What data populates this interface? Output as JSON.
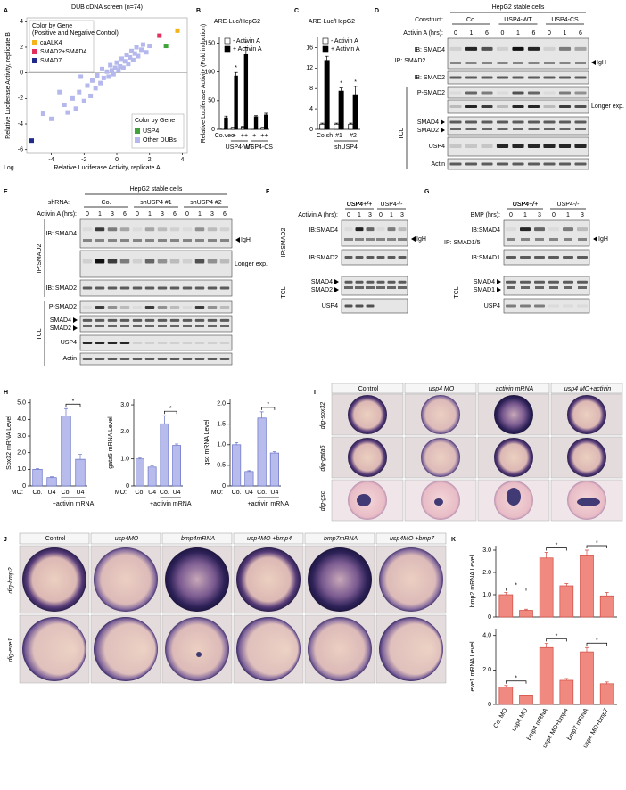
{
  "panel_letters": [
    "A",
    "B",
    "C",
    "D",
    "E",
    "F",
    "G",
    "H",
    "I",
    "J",
    "K"
  ],
  "chart_data": [
    {
      "type": "scatter",
      "title": "DUB cDNA screen (n=74)",
      "xlabel": "Relative Luciferase Activity, replicate A",
      "ylabel": "Relative Luciferase Activity, replicate B",
      "scale_note": "Log",
      "legend_titles": [
        "Color by Gene",
        "Color by Gene"
      ],
      "legend_note": "(Positive and Negative Control)",
      "zero_line": true,
      "xlim": [
        -5.5,
        4.3
      ],
      "ylim": [
        -6.3,
        4.3
      ],
      "xticks": [
        -4,
        -2,
        0,
        2,
        4
      ],
      "yticks": [
        -6,
        -4,
        -2,
        0,
        2,
        4
      ],
      "series": [
        {
          "name": "caALK4",
          "color": "#f5b31a",
          "x": [
            3.7
          ],
          "values": [
            3.3
          ]
        },
        {
          "name": "SMAD2+SMAD4",
          "color": "#e3305a",
          "x": [
            2.6
          ],
          "values": [
            2.9
          ]
        },
        {
          "name": "SMAD7",
          "color": "#1f2a8a",
          "x": [
            -5.2
          ],
          "values": [
            -5.3
          ]
        },
        {
          "name": "USP4",
          "color": "#3fa33a",
          "x": [
            3.0
          ],
          "values": [
            2.1
          ]
        },
        {
          "name": "Other DUBs",
          "color": "#b4b8ec",
          "x": [
            -4.5,
            -4,
            -3.5,
            -3.2,
            -3,
            -2.7,
            -2.5,
            -2.3,
            -2.2,
            -2,
            -1.8,
            -1.6,
            -1.5,
            -1.3,
            -1.2,
            -1,
            -0.9,
            -0.8,
            -0.6,
            -0.5,
            -0.4,
            -0.3,
            -0.2,
            -0.1,
            0,
            0.1,
            0.2,
            0.3,
            0.4,
            0.5,
            0.6,
            0.7,
            0.8,
            0.9,
            1,
            1.1,
            1.2,
            1.3,
            1.5,
            1.6,
            1.8,
            2
          ],
          "values": [
            -3.2,
            -3.6,
            -1.5,
            -2.5,
            -3.1,
            -2,
            -2.8,
            -1.5,
            -0.3,
            -2.2,
            -1,
            -1.8,
            -0.6,
            -1.2,
            -0.2,
            -0.8,
            0.3,
            -0.4,
            0.1,
            -0.3,
            0.6,
            0.2,
            -0.1,
            0.4,
            0.8,
            0.2,
            0.5,
            1.1,
            0.4,
            0.9,
            1.4,
            0.7,
            1.2,
            1.7,
            1,
            1.5,
            2,
            1.3,
            1.8,
            2.2,
            1.6,
            2.1
          ]
        }
      ]
    },
    {
      "type": "bar",
      "title": "ARE-Luc/HepG2",
      "ylabel": "Relative Luciferase Activity (Fold induction)",
      "edge_color": "#000000",
      "legend": true,
      "categories": [
        "Co.vec",
        "+",
        "++",
        "+",
        "++"
      ],
      "groups": [
        {
          "label": "USP4-WT",
          "from": 1,
          "to": 2
        },
        {
          "label": "USP4-CS",
          "from": 3,
          "to": 4
        }
      ],
      "series": [
        {
          "name": "- Activin A",
          "color": "#ffffff",
          "values": [
            2,
            3,
            4,
            2,
            3
          ],
          "errors": [
            0.5,
            0.5,
            1,
            0.5,
            0.5
          ]
        },
        {
          "name": "+ Activin A",
          "color": "#000000",
          "values": [
            20,
            93,
            130,
            22,
            25
          ],
          "errors": [
            3,
            6,
            12,
            2,
            3
          ]
        }
      ],
      "brackets": [
        {
          "label": "*",
          "from": 1,
          "to": 1
        },
        {
          "label": "*",
          "from": 2,
          "to": 2
        }
      ],
      "ylim": [
        0,
        160
      ],
      "yticks": [
        0,
        50,
        100,
        150
      ]
    },
    {
      "type": "bar",
      "title": "ARE-Luc/HepG2",
      "edge_color": "#000000",
      "legend": true,
      "categories": [
        "Co.sh",
        "#1",
        "#2"
      ],
      "groups": [
        {
          "label": "shUSP4",
          "from": 1,
          "to": 2
        }
      ],
      "series": [
        {
          "name": "- Activin A",
          "color": "#ffffff",
          "values": [
            1,
            1,
            1
          ],
          "errors": [
            0.2,
            0.2,
            0.2
          ]
        },
        {
          "name": "+ Activin A",
          "color": "#000000",
          "values": [
            13.5,
            7.5,
            6.8
          ],
          "errors": [
            0.8,
            0.6,
            1.6
          ]
        }
      ],
      "brackets": [
        {
          "label": "*",
          "from": 1,
          "to": 1
        },
        {
          "label": "*",
          "from": 2,
          "to": 2
        }
      ],
      "ylim": [
        0,
        18
      ],
      "yticks": [
        0,
        4,
        8,
        12,
        16
      ]
    },
    {
      "type": "bar",
      "ylabel": "Sox32 mRNA Level",
      "category_label": "MO:",
      "color": "#b8bcec",
      "edge_color": "#6670c8",
      "categories": [
        "Co.",
        "U4",
        "Co.",
        "U4"
      ],
      "values": [
        1.0,
        0.5,
        4.2,
        1.6
      ],
      "errors": [
        0.05,
        0.05,
        0.45,
        0.3
      ],
      "groups": [
        {
          "label": "+activin mRNA",
          "from": 2,
          "to": 3
        }
      ],
      "brackets": [
        {
          "label": "*",
          "from": 2,
          "to": 3
        }
      ],
      "ylim": [
        0,
        5.2
      ],
      "yticks": [
        0,
        {
          "value": 1,
          "label": "1.0"
        },
        {
          "value": 2,
          "label": "2.0"
        },
        {
          "value": 3,
          "label": "3.0"
        },
        {
          "value": 4,
          "label": "4.0"
        },
        {
          "value": 5,
          "label": "5.0"
        }
      ]
    },
    {
      "type": "bar",
      "ylabel": "gata5 mRNA Level",
      "category_label": "MO:",
      "color": "#b8bcec",
      "edge_color": "#6670c8",
      "categories": [
        "Co.",
        "U4",
        "Co.",
        "U4"
      ],
      "values": [
        1.0,
        0.7,
        2.3,
        1.5
      ],
      "errors": [
        0.05,
        0.05,
        0.3,
        0.05
      ],
      "groups": [
        {
          "label": "+activin mRNA",
          "from": 2,
          "to": 3
        }
      ],
      "brackets": [
        {
          "label": "*",
          "from": 2,
          "to": 3
        }
      ],
      "ylim": [
        0,
        3.2
      ],
      "yticks": [
        0,
        {
          "value": 1,
          "label": "1.0"
        },
        {
          "value": 2,
          "label": "2.0"
        },
        {
          "value": 3,
          "label": "3.0"
        }
      ]
    },
    {
      "type": "bar",
      "ylabel": "gsc mRNA Level",
      "category_label": "MO:",
      "color": "#b8bcec",
      "edge_color": "#6670c8",
      "categories": [
        "Co.",
        "U4",
        "Co.",
        "U4"
      ],
      "values": [
        1.0,
        0.35,
        1.65,
        0.8
      ],
      "errors": [
        0.05,
        0.02,
        0.15,
        0.03
      ],
      "groups": [
        {
          "label": "+activin mRNA",
          "from": 2,
          "to": 3
        }
      ],
      "brackets": [
        {
          "label": "*",
          "from": 2,
          "to": 3
        }
      ],
      "ylim": [
        0,
        2.1
      ],
      "yticks": [
        0,
        0.5,
        {
          "value": 1,
          "label": "1.0"
        },
        1.5,
        {
          "value": 2,
          "label": "2.0"
        }
      ]
    },
    {
      "type": "bar",
      "ylabel": "bmp2 mRNA Level",
      "color": "#f08a80",
      "edge_color": "#d04a40",
      "categories": [
        "Co. MO",
        "usp4 MO",
        "bmp4 mRNA",
        "usp4 MO+bmp4",
        "bmp7 mRNA",
        "usp4 MO+bmp7"
      ],
      "values": [
        1.0,
        0.3,
        2.65,
        1.4,
        2.75,
        0.95
      ],
      "errors": [
        0.1,
        0.05,
        0.25,
        0.1,
        0.25,
        0.15
      ],
      "brackets": [
        {
          "label": "*",
          "from": 0,
          "to": 1
        },
        {
          "label": "*",
          "from": 2,
          "to": 3
        },
        {
          "label": "*",
          "from": 4,
          "to": 5
        }
      ],
      "ylim": [
        0,
        3.2
      ],
      "yticks": [
        0,
        {
          "value": 1,
          "label": "1.0"
        },
        {
          "value": 2,
          "label": "2.0"
        },
        {
          "value": 3,
          "label": "3.0"
        }
      ]
    },
    {
      "type": "bar",
      "ylabel": "eve1 mRNA Level",
      "color": "#f08a80",
      "edge_color": "#d04a40",
      "categories": [
        "Co. MO",
        "usp4 MO",
        "bmp4 mRNA",
        "usp4 MO+bmp4",
        "bmp7 mRNA",
        "usp4 MO+bmp7"
      ],
      "values": [
        1.0,
        0.5,
        3.3,
        1.4,
        3.05,
        1.2
      ],
      "errors": [
        0.1,
        0.05,
        0.25,
        0.1,
        0.25,
        0.1
      ],
      "brackets": [
        {
          "label": "*",
          "from": 0,
          "to": 1
        },
        {
          "label": "*",
          "from": 2,
          "to": 3
        },
        {
          "label": "*",
          "from": 4,
          "to": 5
        }
      ],
      "ylim": [
        0,
        4.4
      ],
      "yticks": [
        0,
        {
          "value": 2,
          "label": "2.0"
        },
        {
          "value": 4,
          "label": "4.0"
        }
      ]
    }
  ],
  "blot_d": {
    "header": "HepG2 stable cells",
    "group_label": "Construct:",
    "groups": [
      "Co.",
      "USP4-WT",
      "USP4-CS"
    ],
    "time_label": "Activin A (hrs):",
    "times": [
      [
        0,
        1,
        6
      ],
      [
        0,
        1,
        6
      ],
      [
        0,
        1,
        6
      ]
    ],
    "ip": "IP: SMAD2",
    "tcl": "TCL",
    "igh": "IgH",
    "longer": "Longer exp.",
    "rows": [
      "IB: SMAD4",
      "IB: SMAD2",
      "P-SMAD2",
      "SMAD4",
      "SMAD2",
      "USP4",
      "Actin"
    ]
  },
  "blot_e": {
    "header": "HepG2 stable cells",
    "group_label": "shRNA:",
    "groups": [
      "Co.",
      "shUSP4 #1",
      "shUSP4 #2"
    ],
    "time_label": "Activin A (hrs):",
    "times": [
      [
        0,
        1,
        3,
        6
      ],
      [
        0,
        1,
        3,
        6
      ],
      [
        0,
        1,
        3,
        6
      ]
    ],
    "ip": "IP:SMAD2",
    "tcl": "TCL",
    "igh": "IgH",
    "longer": "Longer exp.",
    "rows": [
      "IB: SMAD4",
      "IB: SMAD2",
      "P-SMAD2",
      "SMAD4",
      "SMAD2",
      "USP4",
      "Actin"
    ]
  },
  "blot_f": {
    "time_label": "Activin A (hrs):",
    "groups": [
      "USP4+/+",
      "USP4-/-"
    ],
    "times": [
      [
        0,
        1,
        3
      ],
      [
        0,
        1,
        3
      ]
    ],
    "ip": "IP:SMAD2",
    "tcl": "TCL",
    "igh": "IgH",
    "rows": [
      "IB:SMAD4",
      "IB:SMAD2",
      "SMAD4",
      "SMAD2",
      "USP4"
    ]
  },
  "blot_g": {
    "time_label": "BMP (hrs):",
    "groups": [
      "USP4+/+",
      "USP4-/-"
    ],
    "times": [
      [
        0,
        1,
        3
      ],
      [
        0,
        1,
        3
      ]
    ],
    "ip": "IP: SMAD1/5",
    "tcl": "TCL",
    "igh": "IgH",
    "rows": [
      "IB:SMAD4",
      "IB:SMAD1",
      "SMAD4",
      "SMAD1",
      "USP4"
    ]
  },
  "panel_i": {
    "columns": [
      "Control",
      "usp4 MO",
      "activin mRNA",
      "usp4 MO+activin"
    ],
    "rows": [
      "dig-sox32",
      "dig-gata5",
      "dig-gsc"
    ]
  },
  "panel_j": {
    "columns": [
      "Control",
      "usp4MO",
      "bmp4mRNA",
      "usp4MO +bmp4",
      "bmp7mRNA",
      "usp4MO +bmp7"
    ],
    "rows": [
      "dig-bmp2",
      "dig-eve1"
    ]
  }
}
